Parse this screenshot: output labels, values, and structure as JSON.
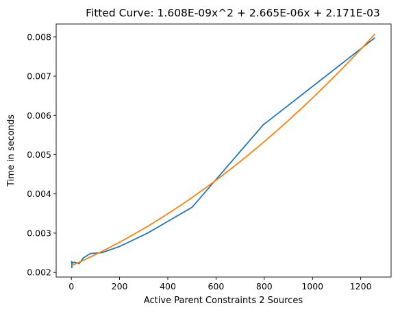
{
  "chart_data": {
    "type": "line",
    "title": "Fitted Curve: 1.608E-09x^2 + 2.665E-06x + 2.171E-03",
    "xlabel": "Active Parent Constraints 2 Sources",
    "ylabel": "Time in seconds",
    "xlim": [
      -63,
      1326
    ],
    "ylim": [
      0.00188,
      0.00833
    ],
    "xticks": [
      0,
      200,
      400,
      600,
      800,
      1000,
      1200
    ],
    "xtick_labels": [
      "0",
      "200",
      "400",
      "600",
      "800",
      "1000",
      "1200"
    ],
    "yticks": [
      0.002,
      0.003,
      0.004,
      0.005,
      0.006,
      0.007,
      0.008
    ],
    "ytick_labels": [
      "0.002",
      "0.003",
      "0.004",
      "0.005",
      "0.006",
      "0.007",
      "0.008"
    ],
    "grid": false,
    "series": [
      {
        "color": "#1f77b4",
        "x": [
          1,
          2,
          3,
          5,
          8,
          13,
          20,
          32,
          50,
          79,
          126,
          200,
          316,
          501,
          794,
          1259
        ],
        "y": [
          0.00229,
          0.00212,
          0.00225,
          0.00226,
          0.00224,
          0.00226,
          0.00225,
          0.00222,
          0.00237,
          0.00248,
          0.0025,
          0.00266,
          0.003,
          0.00366,
          0.00575,
          0.00798
        ]
      },
      {
        "color": "#ff7f0e",
        "formula": "1.608E-09x^2 + 2.665E-06x + 2.171E-03",
        "coefficients": [
          1.608e-09,
          2.665e-06,
          0.002171
        ],
        "x_range": [
          1,
          1259
        ]
      }
    ]
  }
}
